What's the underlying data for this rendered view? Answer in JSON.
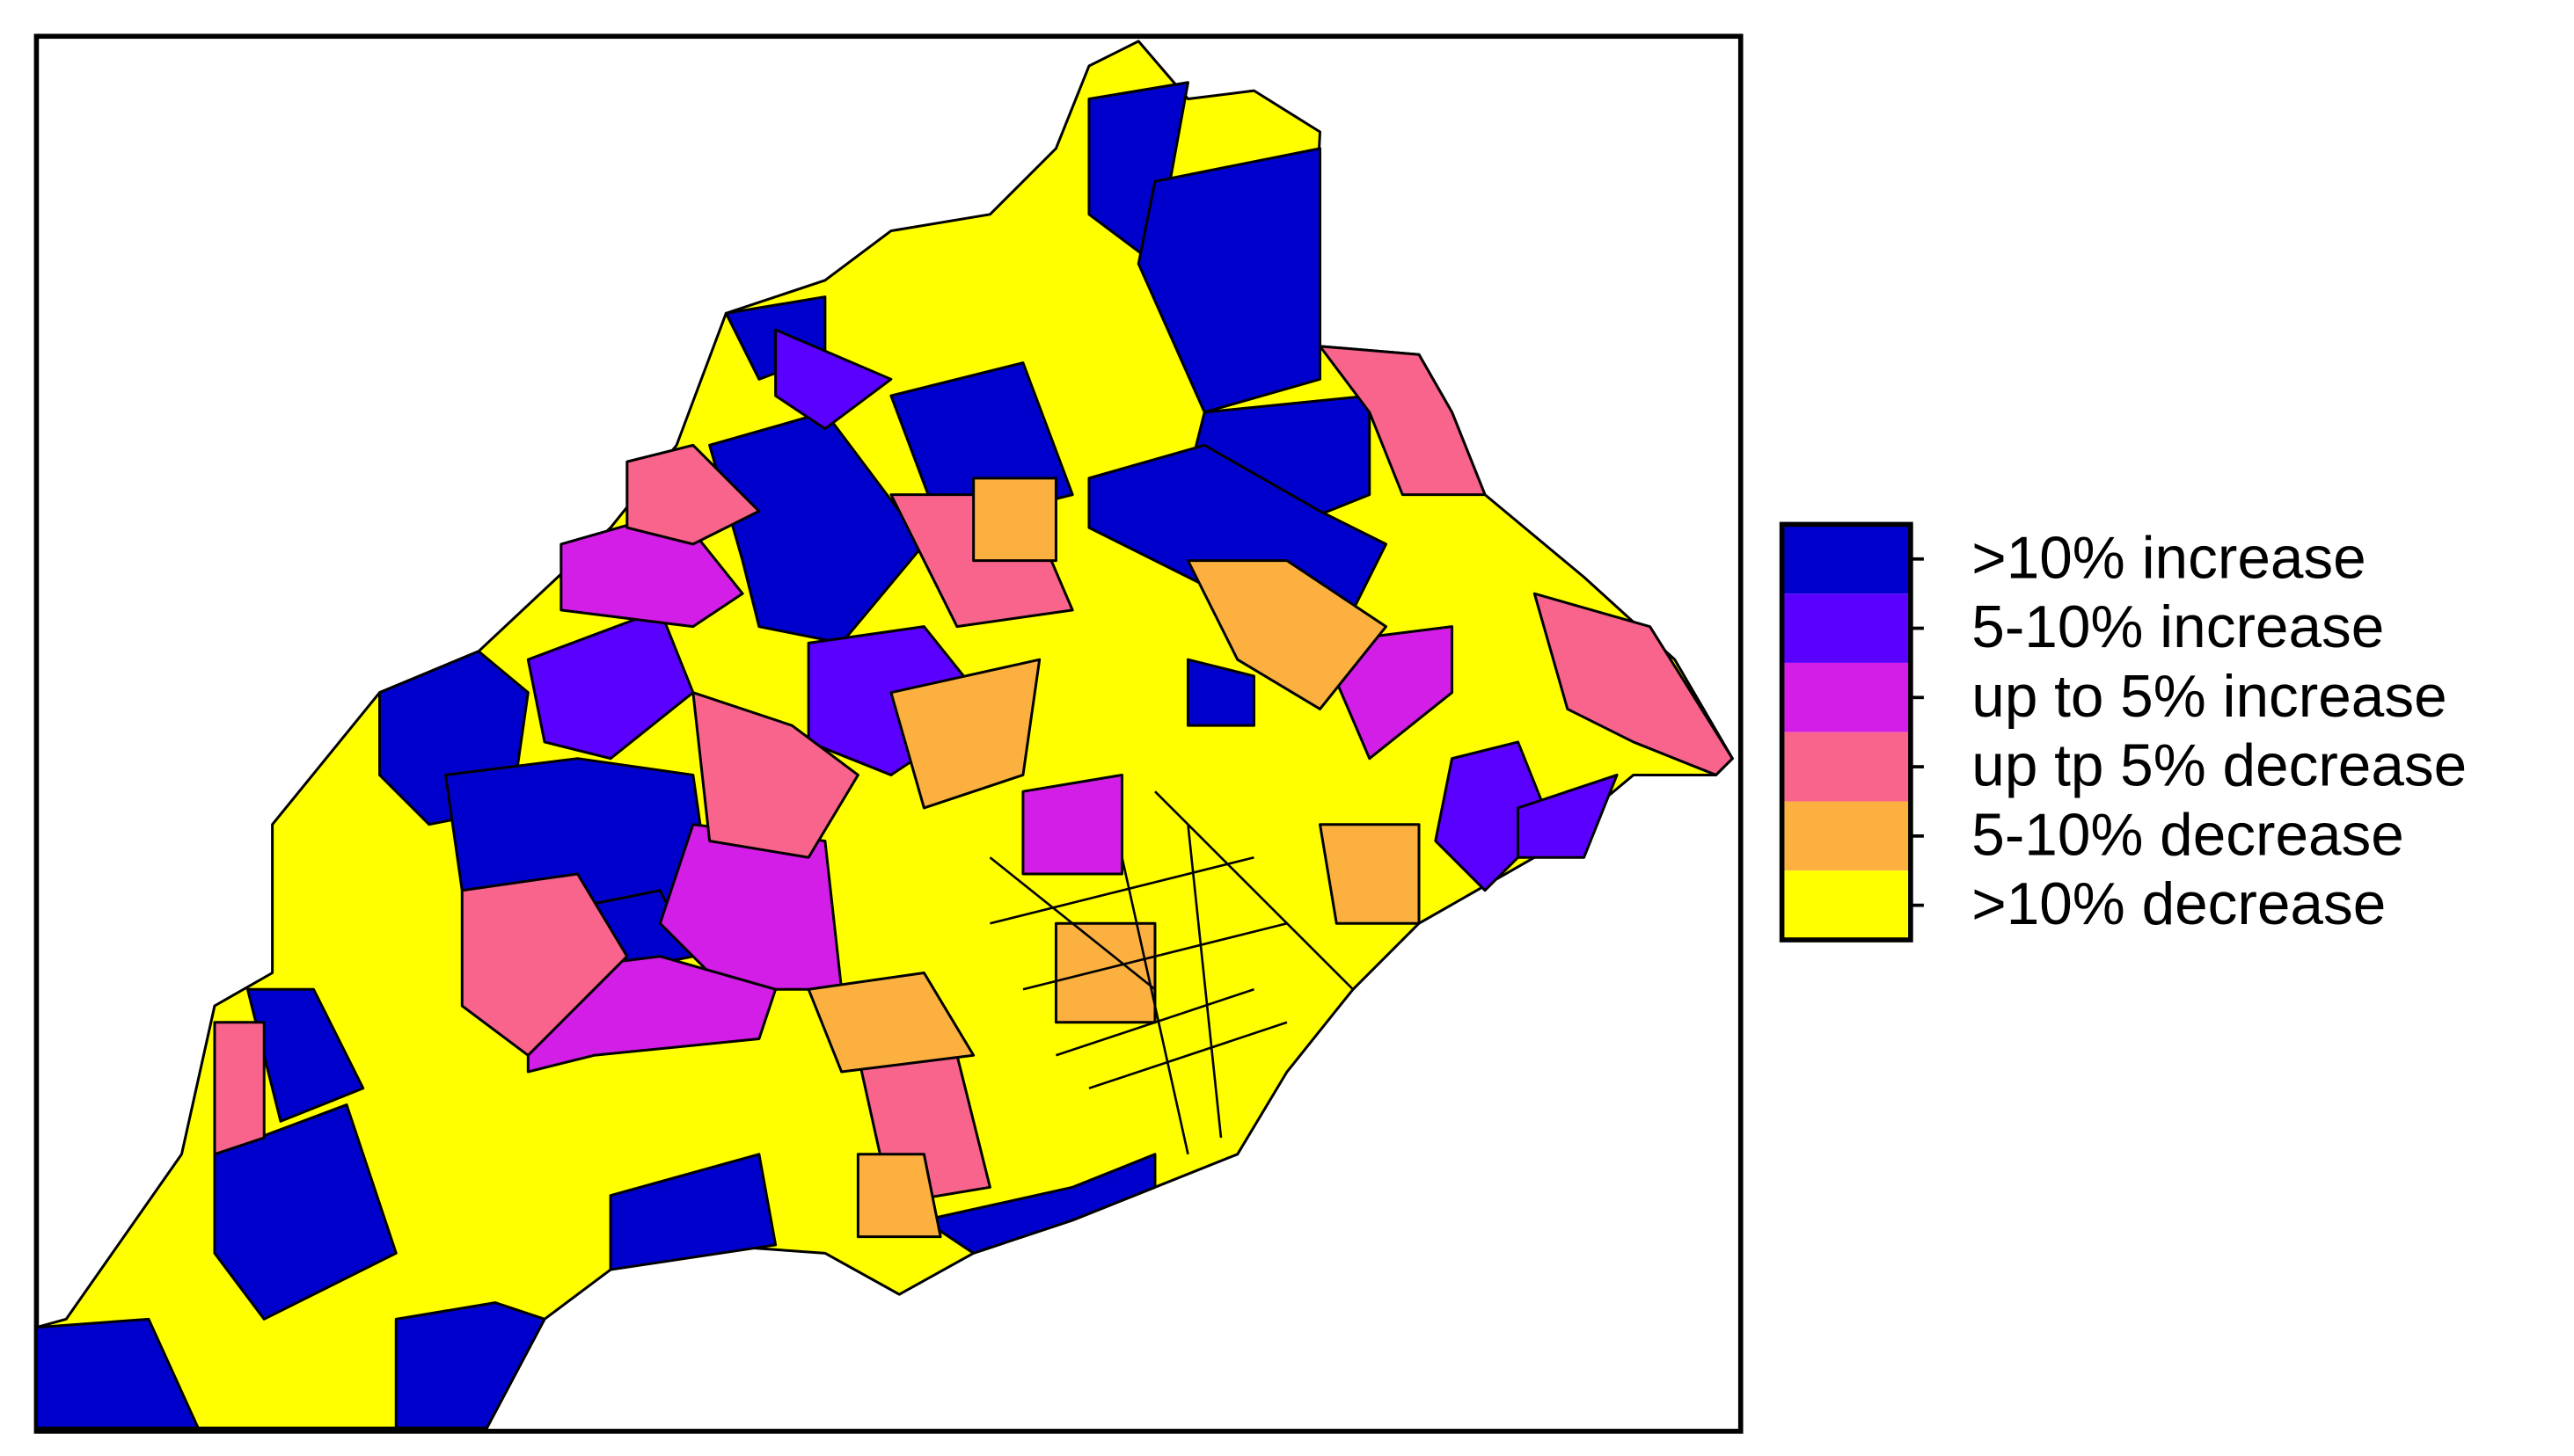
{
  "legend": {
    "items": [
      {
        "label": ">10% increase",
        "color": "#0000cd"
      },
      {
        "label": "5-10% increase",
        "color": "#5a00ff"
      },
      {
        "label": "up to 5% increase",
        "color": "#d21ee6"
      },
      {
        "label": "up tp 5% decrease",
        "color": "#f8648c"
      },
      {
        "label": "5-10% decrease",
        "color": "#fbb040"
      },
      {
        "label": ">10% decrease",
        "color": "#ffff00"
      }
    ]
  }
}
